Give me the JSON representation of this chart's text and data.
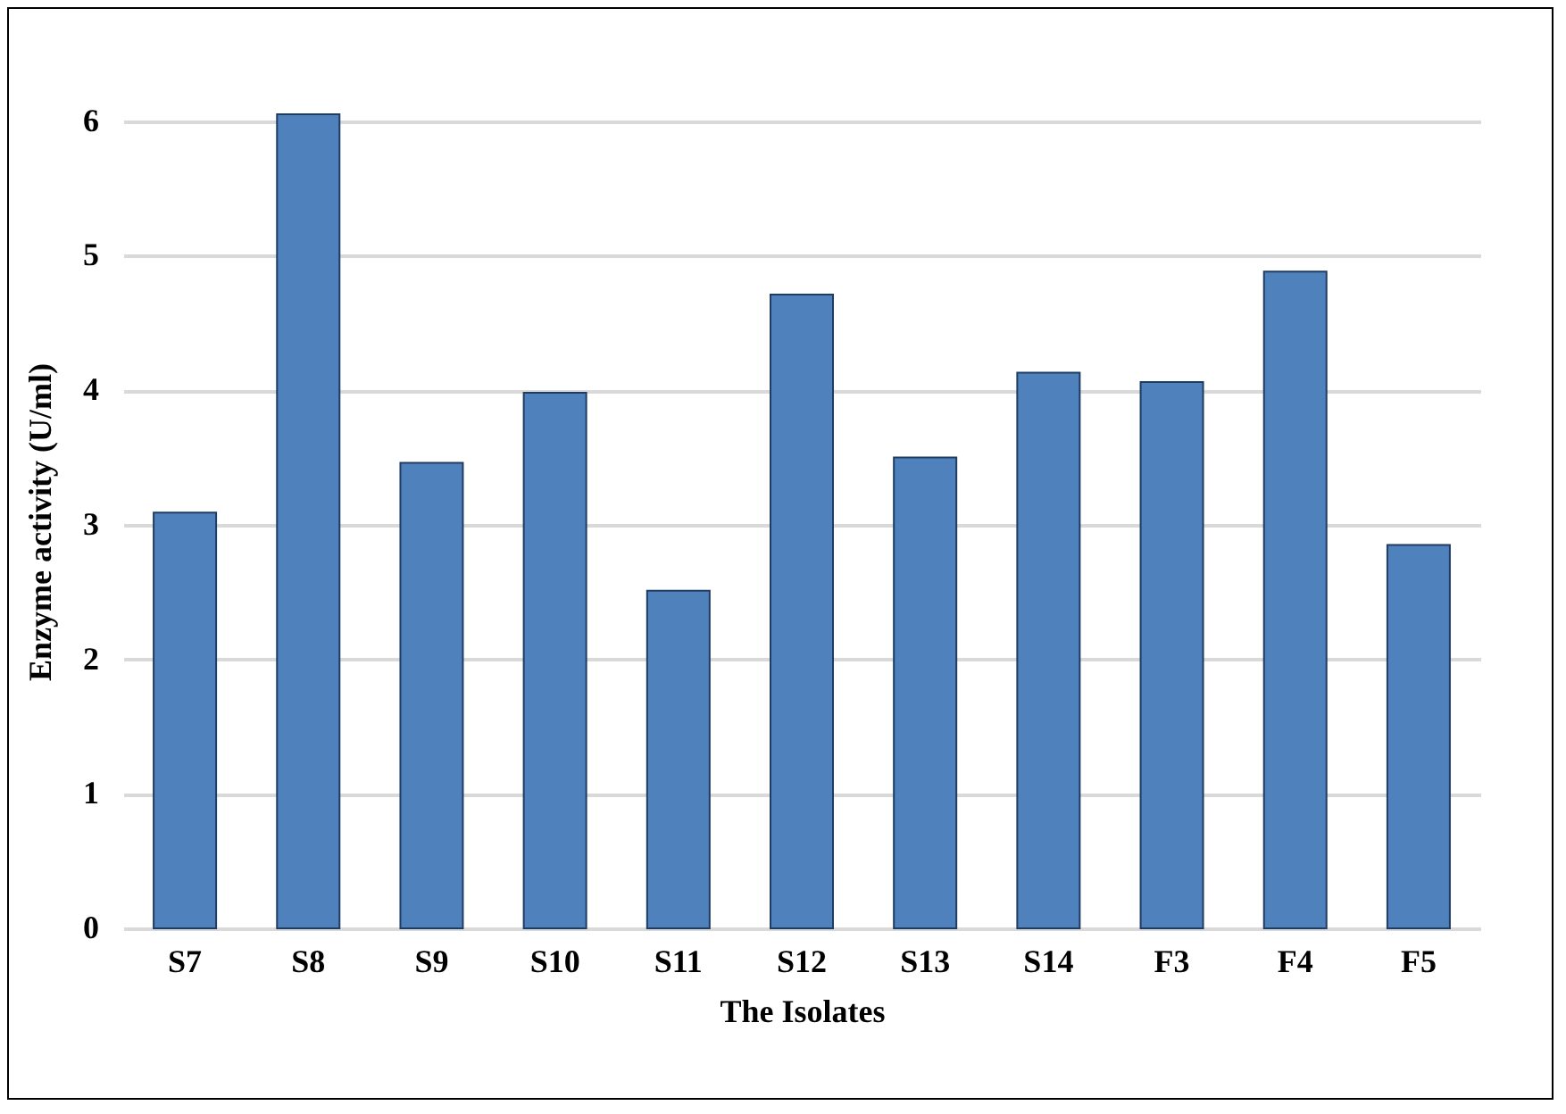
{
  "chart_data": {
    "type": "bar",
    "xlabel": "The Isolates",
    "ylabel": "Enzyme activity (U/ml)",
    "categories": [
      "S7",
      "S8",
      "S9",
      "S10",
      "S11",
      "S12",
      "S13",
      "S14",
      "F3",
      "F4",
      "F5"
    ],
    "values": [
      3.09,
      6.05,
      3.46,
      3.98,
      2.51,
      4.71,
      3.5,
      4.13,
      4.06,
      4.88,
      2.85
    ],
    "color": "#4f81bd",
    "ylim": [
      0,
      6.05
    ],
    "yticks": [
      0,
      1,
      2,
      3,
      4,
      5,
      6
    ],
    "grid": "y"
  }
}
